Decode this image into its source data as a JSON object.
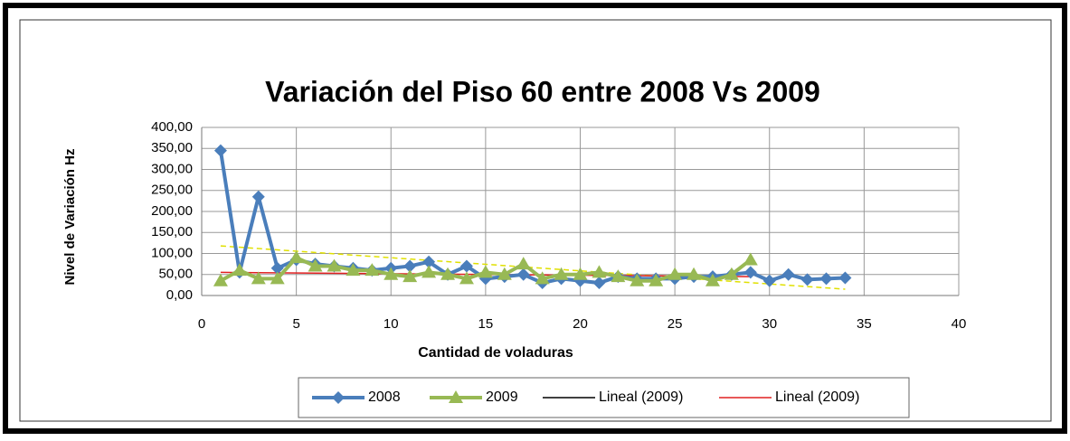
{
  "chart_data": {
    "type": "line",
    "title": "Variación del Piso 60 entre 2008 Vs 2009",
    "x_label": "Cantidad de voladuras",
    "y_label": "Nivel de Variación Hz",
    "xlim": [
      0,
      40
    ],
    "xticks": [
      0,
      5,
      10,
      15,
      20,
      25,
      30,
      35,
      40
    ],
    "ylim": [
      0,
      400
    ],
    "yticks": [
      {
        "value": 0,
        "label": "0,00"
      },
      {
        "value": 50,
        "label": "50,00"
      },
      {
        "value": 100,
        "label": "100,00"
      },
      {
        "value": 150,
        "label": "150,00"
      },
      {
        "value": 200,
        "label": "200,00"
      },
      {
        "value": 250,
        "label": "250,00"
      },
      {
        "value": 300,
        "label": "300,00"
      },
      {
        "value": 350,
        "label": "350,00"
      },
      {
        "value": 400,
        "label": "400,00"
      }
    ],
    "grid": true,
    "legend": "bottom",
    "series": [
      {
        "name": "2008",
        "color": "#4a7ebb",
        "marker": "diamond",
        "x": [
          1,
          2,
          3,
          4,
          5,
          6,
          7,
          8,
          9,
          10,
          11,
          12,
          13,
          14,
          15,
          16,
          17,
          18,
          19,
          20,
          21,
          22,
          23,
          24,
          25,
          26,
          27,
          28,
          29,
          30,
          31,
          32,
          33,
          34
        ],
        "values": [
          345,
          55,
          235,
          65,
          85,
          75,
          70,
          65,
          60,
          65,
          70,
          80,
          50,
          70,
          40,
          45,
          50,
          30,
          40,
          35,
          30,
          45,
          40,
          40,
          40,
          45,
          45,
          50,
          55,
          35,
          50,
          38,
          40,
          42
        ]
      },
      {
        "name": "2009",
        "color": "#98b954",
        "marker": "triangle",
        "x": [
          1,
          2,
          3,
          4,
          5,
          6,
          7,
          8,
          9,
          10,
          11,
          12,
          13,
          14,
          15,
          16,
          17,
          18,
          19,
          20,
          21,
          22,
          23,
          24,
          25,
          26,
          27,
          28,
          29
        ],
        "values": [
          35,
          60,
          40,
          40,
          90,
          70,
          70,
          60,
          60,
          50,
          45,
          55,
          50,
          40,
          55,
          50,
          75,
          40,
          50,
          50,
          55,
          45,
          35,
          35,
          50,
          50,
          35,
          50,
          85
        ]
      },
      {
        "name": "Lineal (2009)",
        "color": "#e0e000",
        "legend_color": "#000000",
        "dash": true,
        "x": [
          1,
          34
        ],
        "values": [
          118,
          15
        ]
      },
      {
        "name": "Lineal (2009)",
        "color": "#e02020",
        "legend_color": "#e02020",
        "dash": false,
        "x": [
          1,
          29
        ],
        "values": [
          55,
          45
        ]
      }
    ]
  }
}
